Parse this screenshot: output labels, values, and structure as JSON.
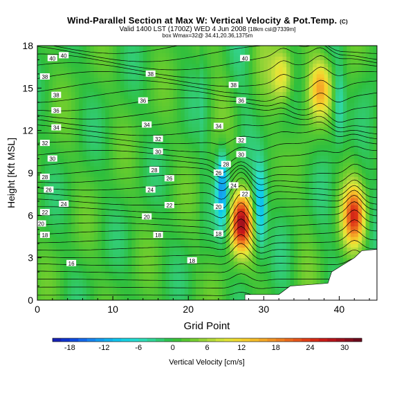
{
  "chart_data": {
    "type": "heatmap",
    "title": "Wind-Parallel Section at Max W: Vertical Velocity & Pot.Temp.",
    "title_suffix": "(C)",
    "subtitle": "Valid 1400 LST (1700Z) WED 4 Jun 2008",
    "subtitle_suffix": "[18km csl@7339m]",
    "subtitle2": "box Wmax=32@ 34.41,20.36,1375m",
    "xlabel": "Grid Point",
    "ylabel": "Height [Kft MSL]",
    "xlim": [
      0,
      45
    ],
    "ylim": [
      0,
      18
    ],
    "x_ticks": [
      "0",
      "10",
      "20",
      "30",
      "40"
    ],
    "y_ticks": [
      "0",
      "3",
      "6",
      "9",
      "12",
      "15",
      "18"
    ],
    "colorbar": {
      "label": "Vertical Velocity [cm/s]",
      "tick_labels": [
        "-18",
        "-12",
        "-6",
        "0",
        "6",
        "12",
        "18",
        "24",
        "30"
      ],
      "range": [
        -21,
        33
      ]
    },
    "features": [
      {
        "name": "updraft",
        "x": 27,
        "y": 5.5,
        "w": 28
      },
      {
        "name": "updraft",
        "x": 42,
        "y": 6,
        "w": 22
      },
      {
        "name": "updraft",
        "x": 37.5,
        "y": 15,
        "w": 14
      },
      {
        "name": "updraft",
        "x": 32.5,
        "y": 16,
        "w": 12
      },
      {
        "name": "downdraft",
        "x": 24.5,
        "y": 8,
        "w": -14
      },
      {
        "name": "downdraft",
        "x": 29.5,
        "y": 6.5,
        "w": -13
      },
      {
        "name": "downdraft",
        "x": 40,
        "y": 14,
        "w": -6
      }
    ],
    "theta_contour_labels": [
      {
        "text": "40",
        "x": 2,
        "y": 17.1
      },
      {
        "text": "40",
        "x": 3.5,
        "y": 17.3
      },
      {
        "text": "38",
        "x": 1,
        "y": 15.8
      },
      {
        "text": "38",
        "x": 2.5,
        "y": 14.5
      },
      {
        "text": "36",
        "x": 2.5,
        "y": 13.4
      },
      {
        "text": "34",
        "x": 2.5,
        "y": 12.2
      },
      {
        "text": "32",
        "x": 1,
        "y": 11.1
      },
      {
        "text": "30",
        "x": 2,
        "y": 10.0
      },
      {
        "text": "28",
        "x": 1,
        "y": 8.7
      },
      {
        "text": "26",
        "x": 1.5,
        "y": 7.8
      },
      {
        "text": "24",
        "x": 3.5,
        "y": 6.8
      },
      {
        "text": "22",
        "x": 1,
        "y": 6.2
      },
      {
        "text": "20",
        "x": 0.5,
        "y": 5.4
      },
      {
        "text": "18",
        "x": 1,
        "y": 4.6
      },
      {
        "text": "16",
        "x": 4.5,
        "y": 2.6
      },
      {
        "text": "38",
        "x": 15,
        "y": 16.0
      },
      {
        "text": "36",
        "x": 14,
        "y": 14.1
      },
      {
        "text": "34",
        "x": 14.5,
        "y": 12.4
      },
      {
        "text": "32",
        "x": 16,
        "y": 11.4
      },
      {
        "text": "30",
        "x": 16,
        "y": 10.5
      },
      {
        "text": "28",
        "x": 15.5,
        "y": 9.2
      },
      {
        "text": "26",
        "x": 17.5,
        "y": 8.6
      },
      {
        "text": "24",
        "x": 15,
        "y": 7.8
      },
      {
        "text": "22",
        "x": 17.5,
        "y": 6.7
      },
      {
        "text": "20",
        "x": 14.5,
        "y": 5.9
      },
      {
        "text": "18",
        "x": 16,
        "y": 4.6
      },
      {
        "text": "18",
        "x": 20.5,
        "y": 2.8
      },
      {
        "text": "40",
        "x": 27.5,
        "y": 17.1
      },
      {
        "text": "38",
        "x": 26,
        "y": 15.2
      },
      {
        "text": "36",
        "x": 27,
        "y": 14.1
      },
      {
        "text": "34",
        "x": 24,
        "y": 12.3
      },
      {
        "text": "32",
        "x": 27,
        "y": 11.3
      },
      {
        "text": "30",
        "x": 27,
        "y": 10.3
      },
      {
        "text": "28",
        "x": 25,
        "y": 9.6
      },
      {
        "text": "26",
        "x": 24,
        "y": 9.0
      },
      {
        "text": "24",
        "x": 26,
        "y": 8.1
      },
      {
        "text": "22",
        "x": 27.5,
        "y": 7.5
      },
      {
        "text": "20",
        "x": 24,
        "y": 6.6
      },
      {
        "text": "18",
        "x": 24,
        "y": 4.7
      }
    ]
  }
}
